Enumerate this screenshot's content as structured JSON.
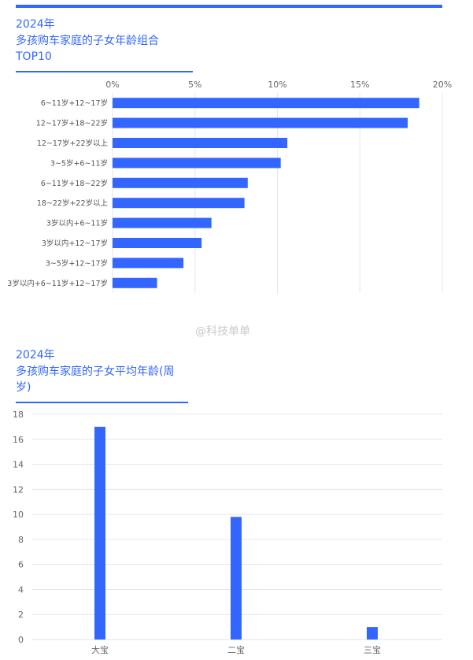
{
  "watermark": "@科技单单",
  "chart_data": [
    {
      "type": "bar",
      "orientation": "horizontal",
      "year": "2024年",
      "title": "多孩购车家庭的子女年龄组合TOP10",
      "categories": [
        "6~11岁+12~17岁",
        "12~17岁+18~22岁",
        "12~17岁+22岁以上",
        "3~5岁+6~11岁",
        "6~11岁+18~22岁",
        "18~22岁+22岁以上",
        "3岁以内+6~11岁",
        "3岁以内+12~17岁",
        "3~5岁+12~17岁",
        "3岁以内+6~11岁+12~17岁"
      ],
      "values": [
        18.6,
        17.9,
        10.6,
        10.2,
        8.2,
        8.0,
        6.0,
        5.4,
        4.3,
        2.7
      ],
      "xlim": [
        0,
        20
      ],
      "ticks": [
        "0%",
        "5%",
        "10%",
        "15%",
        "20%"
      ],
      "tick_values": [
        0,
        5,
        10,
        15,
        20
      ],
      "axis_position": "top",
      "grid": true,
      "color": "#3366ff"
    },
    {
      "type": "bar",
      "year": "2024年",
      "title": "多孩购车家庭的子女平均年龄(周岁)",
      "categories": [
        "大宝",
        "二宝",
        "三宝"
      ],
      "values": [
        17.0,
        9.8,
        1.0
      ],
      "ylim": [
        0,
        18
      ],
      "ticks": [
        "0",
        "2",
        "4",
        "6",
        "8",
        "10",
        "12",
        "14",
        "16",
        "18"
      ],
      "tick_values": [
        0,
        2,
        4,
        6,
        8,
        10,
        12,
        14,
        16,
        18
      ],
      "grid": true,
      "color": "#3366ff"
    }
  ]
}
